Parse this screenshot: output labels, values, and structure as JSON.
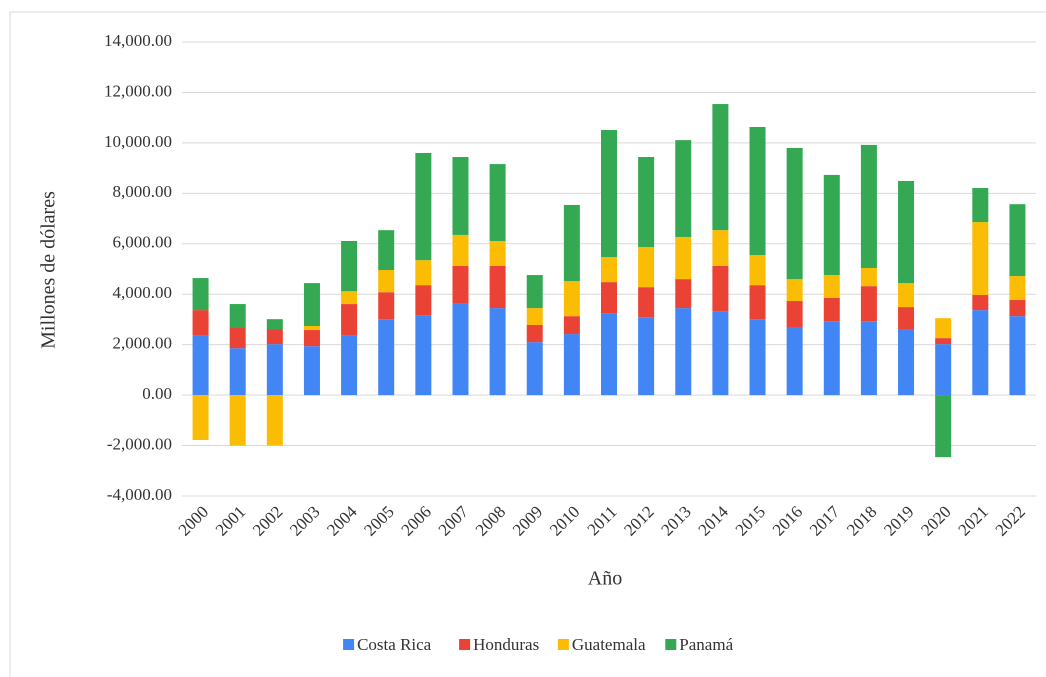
{
  "chart_data": {
    "type": "bar",
    "stacked": true,
    "x_label": "Año",
    "y_label": "Millones de dólares",
    "categories": [
      "2000",
      "2001",
      "2002",
      "2003",
      "2004",
      "2005",
      "2006",
      "2007",
      "2008",
      "2009",
      "2010",
      "2011",
      "2012",
      "2013",
      "2014",
      "2015",
      "2016",
      "2017",
      "2018",
      "2019",
      "2020",
      "2021",
      "2022"
    ],
    "series": [
      {
        "name": "Costa Rica",
        "color": "#4285f4",
        "values": [
          2380,
          1860,
          2020,
          1940,
          2380,
          3010,
          3170,
          3650,
          3450,
          2100,
          2420,
          3250,
          3090,
          3450,
          3330,
          3010,
          2700,
          2930,
          2930,
          2620,
          2020,
          3370,
          3130
        ]
      },
      {
        "name": "Honduras",
        "color": "#ea4335",
        "values": [
          990,
          800,
          600,
          640,
          1230,
          1070,
          1190,
          1470,
          1670,
          680,
          710,
          1230,
          1190,
          1150,
          1790,
          1350,
          1030,
          920,
          1390,
          870,
          240,
          600,
          640
        ]
      },
      {
        "name": "Guatemala",
        "color": "#fbbc04",
        "values": [
          -1780,
          -2000,
          -2000,
          160,
          510,
          880,
          990,
          1230,
          990,
          670,
          1390,
          990,
          1590,
          1670,
          1420,
          1190,
          870,
          910,
          720,
          950,
          790,
          2890,
          950
        ]
      },
      {
        "name": "Panamá",
        "color": "#34a853",
        "values": [
          1270,
          950,
          390,
          1700,
          1990,
          1580,
          4250,
          3090,
          3050,
          1310,
          3020,
          5040,
          3570,
          3840,
          5000,
          5080,
          5200,
          3970,
          4880,
          4050,
          -2460,
          1350,
          2850
        ]
      }
    ],
    "ylim": [
      -4000,
      14000
    ],
    "yticks": [
      {
        "value": -4000,
        "label": "-4,000.00"
      },
      {
        "value": -2000,
        "label": "-2,000.00"
      },
      {
        "value": 0,
        "label": "0.00"
      },
      {
        "value": 2000,
        "label": "2,000.00"
      },
      {
        "value": 4000,
        "label": "4,000.00"
      },
      {
        "value": 6000,
        "label": "6,000.00"
      },
      {
        "value": 8000,
        "label": "8,000.00"
      },
      {
        "value": 10000,
        "label": "10,000.00"
      },
      {
        "value": 12000,
        "label": "12,000.00"
      },
      {
        "value": 14000,
        "label": "14,000.00"
      }
    ],
    "grid": true,
    "legend": "bottom"
  }
}
